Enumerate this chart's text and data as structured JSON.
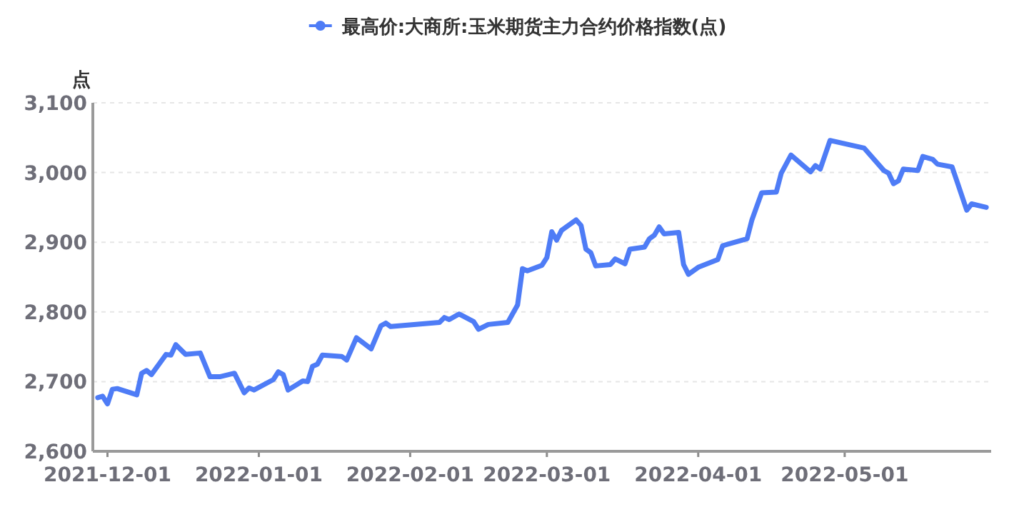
{
  "chart_data": {
    "type": "line",
    "ylabel": "点",
    "legend": "top",
    "grid": "y",
    "marker": "none",
    "line_style": "solid",
    "xlim": [
      "2021-11-28",
      "2022-05-31"
    ],
    "xticks": [
      "2021-12-01",
      "2022-01-01",
      "2022-02-01",
      "2022-03-01",
      "2022-04-01",
      "2022-05-01"
    ],
    "ylim": [
      2600,
      3100
    ],
    "yticks": [
      {
        "value": 2600,
        "label": "2,600"
      },
      {
        "value": 2700,
        "label": "2,700"
      },
      {
        "value": 2800,
        "label": "2,800"
      },
      {
        "value": 2900,
        "label": "2,900"
      },
      {
        "value": 3000,
        "label": "3,000"
      },
      {
        "value": 3100,
        "label": "3,100"
      }
    ],
    "series": [
      {
        "name": "最高价:大商所:玉米期货主力合约价格指数(点)",
        "color": "#4e7cf6",
        "x": [
          "2021-11-29",
          "2021-11-30",
          "2021-12-01",
          "2021-12-02",
          "2021-12-03",
          "2021-12-07",
          "2021-12-08",
          "2021-12-09",
          "2021-12-10",
          "2021-12-13",
          "2021-12-14",
          "2021-12-15",
          "2021-12-17",
          "2021-12-20",
          "2021-12-22",
          "2021-12-24",
          "2021-12-27",
          "2021-12-29",
          "2021-12-30",
          "2021-12-31",
          "2022-01-04",
          "2022-01-05",
          "2022-01-06",
          "2022-01-07",
          "2022-01-10",
          "2022-01-11",
          "2022-01-12",
          "2022-01-13",
          "2022-01-14",
          "2022-01-18",
          "2022-01-19",
          "2022-01-21",
          "2022-01-24",
          "2022-01-26",
          "2022-01-27",
          "2022-01-28",
          "2022-02-07",
          "2022-02-08",
          "2022-02-09",
          "2022-02-11",
          "2022-02-14",
          "2022-02-15",
          "2022-02-17",
          "2022-02-21",
          "2022-02-23",
          "2022-02-24",
          "2022-02-25",
          "2022-02-28",
          "2022-03-01",
          "2022-03-02",
          "2022-03-03",
          "2022-03-04",
          "2022-03-07",
          "2022-03-08",
          "2022-03-09",
          "2022-03-10",
          "2022-03-11",
          "2022-03-14",
          "2022-03-15",
          "2022-03-17",
          "2022-03-18",
          "2022-03-21",
          "2022-03-22",
          "2022-03-23",
          "2022-03-24",
          "2022-03-25",
          "2022-03-28",
          "2022-03-29",
          "2022-03-30",
          "2022-04-01",
          "2022-04-05",
          "2022-04-06",
          "2022-04-11",
          "2022-04-12",
          "2022-04-14",
          "2022-04-17",
          "2022-04-18",
          "2022-04-20",
          "2022-04-24",
          "2022-04-25",
          "2022-04-26",
          "2022-04-28",
          "2022-05-05",
          "2022-05-09",
          "2022-05-10",
          "2022-05-11",
          "2022-05-12",
          "2022-05-13",
          "2022-05-16",
          "2022-05-17",
          "2022-05-19",
          "2022-05-20",
          "2022-05-23",
          "2022-05-26",
          "2022-05-27",
          "2022-05-30"
        ],
        "values": [
          2677,
          2679,
          2668,
          2689,
          2690,
          2681,
          2712,
          2716,
          2710,
          2739,
          2738,
          2753,
          2739,
          2741,
          2707,
          2707,
          2712,
          2684,
          2691,
          2688,
          2703,
          2714,
          2710,
          2688,
          2701,
          2700,
          2722,
          2725,
          2738,
          2736,
          2731,
          2763,
          2747,
          2780,
          2784,
          2779,
          2785,
          2792,
          2789,
          2797,
          2786,
          2775,
          2782,
          2785,
          2810,
          2862,
          2859,
          2867,
          2878,
          2915,
          2903,
          2917,
          2932,
          2924,
          2890,
          2885,
          2866,
          2868,
          2876,
          2869,
          2890,
          2893,
          2905,
          2910,
          2922,
          2912,
          2914,
          2868,
          2854,
          2864,
          2875,
          2895,
          2905,
          2932,
          2971,
          2972,
          2999,
          3025,
          3001,
          3010,
          3005,
          3046,
          3035,
          3003,
          2999,
          2984,
          2988,
          3005,
          3003,
          3023,
          3019,
          3012,
          3008,
          2946,
          2955,
          2950
        ]
      }
    ]
  }
}
